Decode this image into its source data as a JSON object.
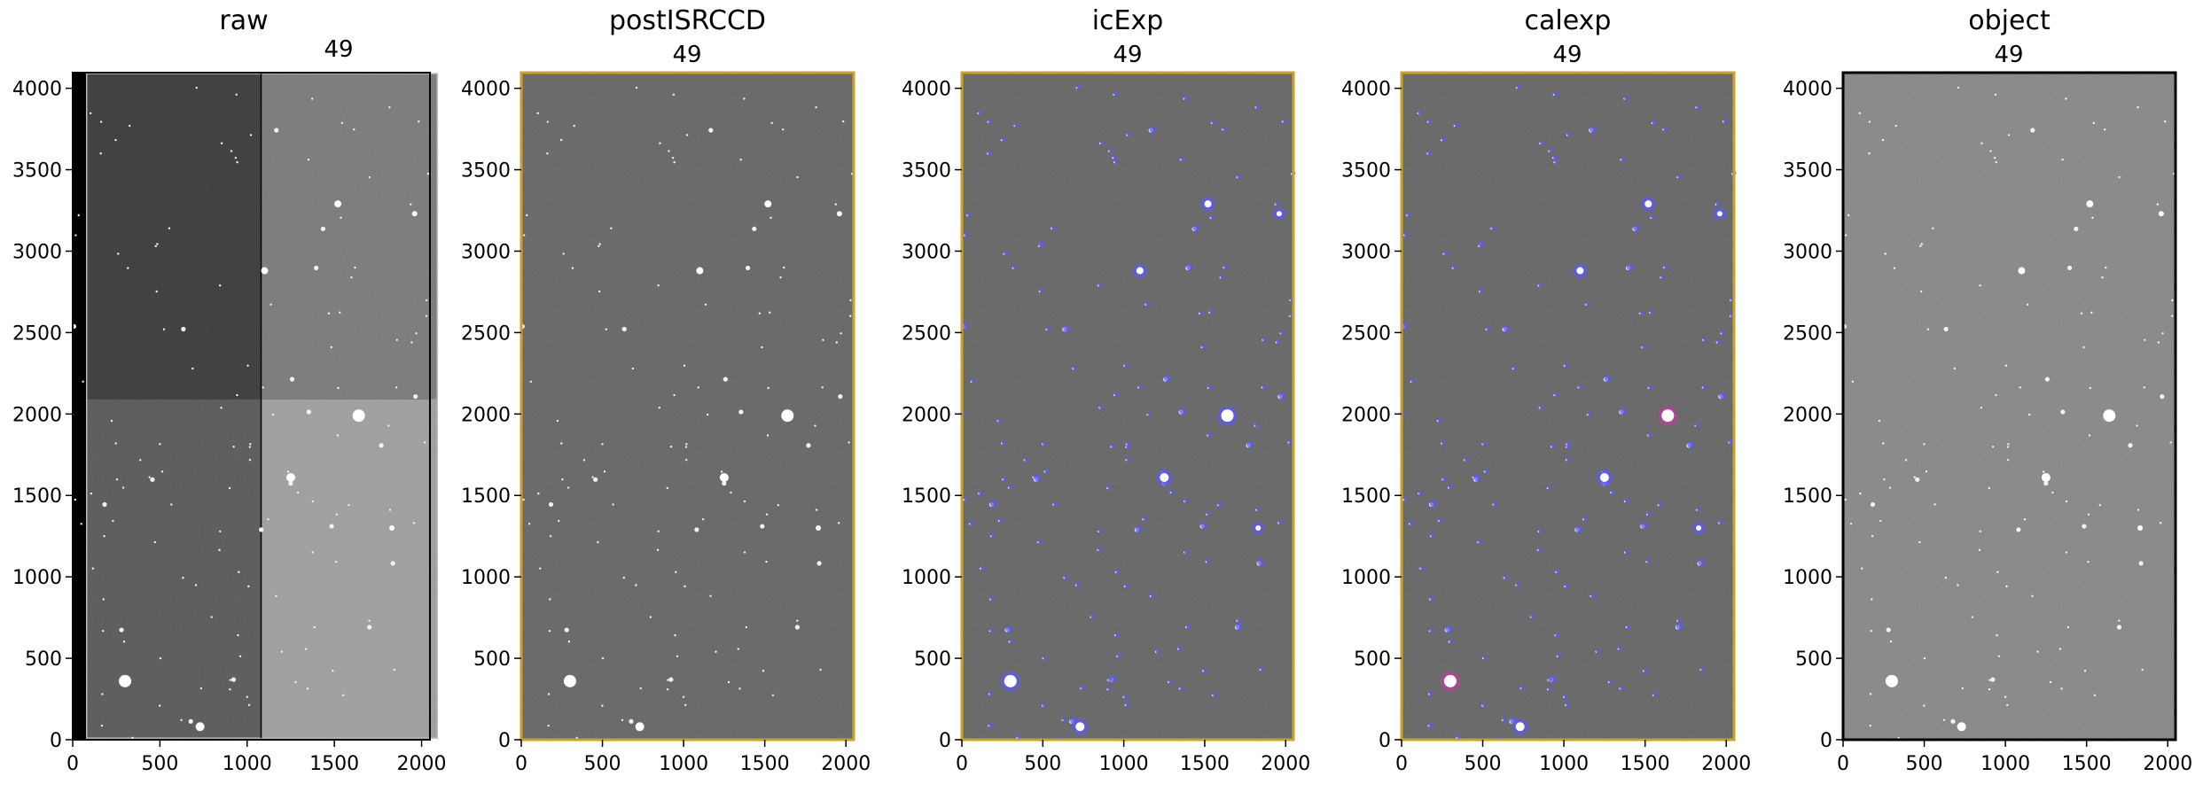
{
  "panels": [
    {
      "id": "raw",
      "title": "raw",
      "ccd_label": "49",
      "style": "raw",
      "border_color": "#000000"
    },
    {
      "id": "postISRCCD",
      "title": "postISRCCD",
      "ccd_label": "49",
      "style": "post",
      "border_color": "#c9a227"
    },
    {
      "id": "icExp",
      "title": "icExp",
      "ccd_label": "49",
      "style": "icexp",
      "border_color": "#c9a227"
    },
    {
      "id": "calexp",
      "title": "calexp",
      "ccd_label": "49",
      "style": "calexp",
      "border_color": "#c9a227"
    },
    {
      "id": "object",
      "title": "object",
      "ccd_label": "49",
      "style": "object",
      "border_color": "#000000"
    }
  ],
  "axes": {
    "x_ticks": [
      "0",
      "500",
      "1000",
      "1500",
      "2000"
    ],
    "y_ticks": [
      "0",
      "500",
      "1000",
      "1500",
      "2000",
      "2500",
      "3000",
      "3500",
      "4000"
    ],
    "x_range": [
      0,
      2048
    ],
    "y_range": [
      0,
      4096
    ]
  },
  "colors": {
    "mask_detected": "#5a5aff",
    "mask_edge": "#c9a227",
    "mask_bright": "#c03ca0"
  }
}
